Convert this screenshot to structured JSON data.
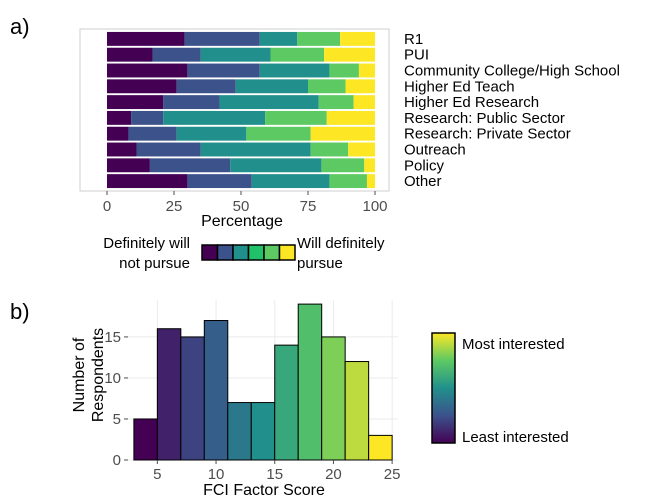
{
  "panel_labels": [
    "a)",
    "b)"
  ],
  "chart_data": [
    {
      "type": "bar",
      "orientation": "horizontal",
      "stacked": true,
      "categories": [
        "R1",
        "PUI",
        "Community College/High School",
        "Higher Ed Teach",
        "Higher Ed Research",
        "Research: Public Sector",
        "Research: Private Sector",
        "Outreach",
        "Policy",
        "Other"
      ],
      "series": [
        {
          "values": [
            29,
            17,
            30,
            26,
            21,
            9,
            8,
            11,
            16,
            30
          ],
          "color": "#440154"
        },
        {
          "values": [
            28,
            18,
            27,
            22,
            21,
            12,
            18,
            24,
            30,
            24
          ],
          "color": "#3b528b"
        },
        {
          "values": [
            14,
            26,
            26,
            27,
            37,
            38,
            26,
            41,
            34,
            29
          ],
          "color": "#21908c"
        },
        {
          "values": [
            16,
            20,
            11,
            14,
            13,
            23,
            24,
            14,
            16,
            14
          ],
          "color": "#5dc963"
        },
        {
          "values": [
            13,
            19,
            6,
            11,
            8,
            18,
            24,
            10,
            4,
            3
          ],
          "color": "#fde725"
        }
      ],
      "xlabel": "Percentage",
      "xlim": [
        0,
        100
      ],
      "xticks": [
        "0",
        "25",
        "50",
        "75",
        "100"
      ],
      "legend": {
        "left_label": "Definitely will not pursue",
        "left_lines": [
          "Definitely will",
          "not pursue"
        ],
        "right_label": "Will definitely pursue",
        "right_lines": [
          "Will definitely",
          "pursue"
        ],
        "colors": [
          "#440154",
          "#3b528b",
          "#21908c",
          "#21c16a",
          "#5dc963",
          "#fde725"
        ]
      },
      "grid": true
    },
    {
      "type": "bar",
      "subtype": "histogram",
      "bins": [
        {
          "center": 4,
          "count": 5
        },
        {
          "center": 6,
          "count": 16
        },
        {
          "center": 8,
          "count": 15
        },
        {
          "center": 10,
          "count": 17
        },
        {
          "center": 12,
          "count": 7
        },
        {
          "center": 14,
          "count": 7
        },
        {
          "center": 16,
          "count": 14
        },
        {
          "center": 18,
          "count": 19
        },
        {
          "center": 20,
          "count": 15
        },
        {
          "center": 22,
          "count": 12
        },
        {
          "center": 24,
          "count": 3
        }
      ],
      "xlabel": "FCI Factor Score",
      "ylabel": "Number of Respondents",
      "ylabel_lines": [
        "Number of",
        "Respondents"
      ],
      "xlim": [
        2.5,
        25.5
      ],
      "ylim": [
        0,
        19.5
      ],
      "xticks": [
        5,
        10,
        15,
        20,
        25
      ],
      "yticks": [
        0,
        5,
        10,
        15
      ],
      "colorbar": {
        "top_label": "Most interested",
        "bottom_label": "Least interested",
        "colors": [
          "#440154",
          "#3b528b",
          "#21908c",
          "#5dc963",
          "#fde725"
        ]
      },
      "grid": true
    }
  ]
}
